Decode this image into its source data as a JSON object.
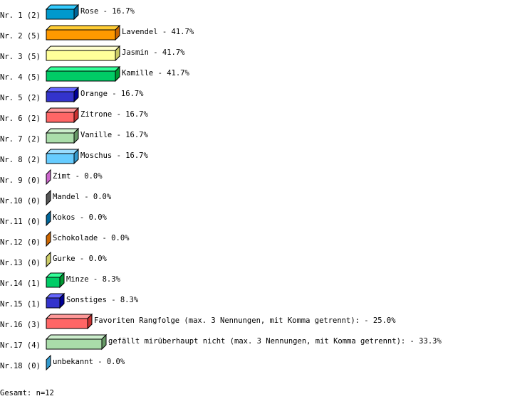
{
  "chart_data": {
    "type": "bar",
    "orientation": "horizontal",
    "style": "3d",
    "unit": "%",
    "xlim": [
      0,
      100
    ],
    "grid": false,
    "rows": [
      {
        "rank": "Nr. 1",
        "count": 2,
        "label": "Rose",
        "value": 16.7,
        "color": "#0099cc",
        "top": "#33ccff",
        "side": "#006699"
      },
      {
        "rank": "Nr. 2",
        "count": 5,
        "label": "Lavendel",
        "value": 41.7,
        "color": "#ff9900",
        "top": "#ffcc33",
        "side": "#cc6600"
      },
      {
        "rank": "Nr. 3",
        "count": 5,
        "label": "Jasmin",
        "value": 41.7,
        "color": "#ffff99",
        "top": "#ffffcc",
        "side": "#cccc66"
      },
      {
        "rank": "Nr. 4",
        "count": 5,
        "label": "Kamille",
        "value": 41.7,
        "color": "#00cc66",
        "top": "#33ff99",
        "side": "#009933"
      },
      {
        "rank": "Nr. 5",
        "count": 2,
        "label": "Orange",
        "value": 16.7,
        "color": "#3333cc",
        "top": "#6666ff",
        "side": "#000099"
      },
      {
        "rank": "Nr. 6",
        "count": 2,
        "label": "Zitrone",
        "value": 16.7,
        "color": "#ff6666",
        "top": "#ff9999",
        "side": "#cc3333"
      },
      {
        "rank": "Nr. 7",
        "count": 2,
        "label": "Vanille",
        "value": 16.7,
        "color": "#aaddaa",
        "top": "#cceecc",
        "side": "#669966"
      },
      {
        "rank": "Nr. 8",
        "count": 2,
        "label": "Moschus",
        "value": 16.7,
        "color": "#66ccff",
        "top": "#99ddff",
        "side": "#3399cc"
      },
      {
        "rank": "Nr. 9",
        "count": 0,
        "label": "Zimt",
        "value": 0.0,
        "color": "#cc66cc",
        "top": "#ee99ee",
        "side": "#cc66cc"
      },
      {
        "rank": "Nr.10",
        "count": 0,
        "label": "Mandel",
        "value": 0.0,
        "color": "#555555",
        "top": "#888888",
        "side": "#555555"
      },
      {
        "rank": "Nr.11",
        "count": 0,
        "label": "Kokos",
        "value": 0.0,
        "color": "#006699",
        "top": "#3399cc",
        "side": "#006699"
      },
      {
        "rank": "Nr.12",
        "count": 0,
        "label": "Schokolade",
        "value": 0.0,
        "color": "#cc6600",
        "top": "#ff9933",
        "side": "#cc6600"
      },
      {
        "rank": "Nr.13",
        "count": 0,
        "label": "Gurke",
        "value": 0.0,
        "color": "#cccc66",
        "top": "#eeee99",
        "side": "#cccc66"
      },
      {
        "rank": "Nr.14",
        "count": 1,
        "label": "Minze",
        "value": 8.3,
        "color": "#00cc66",
        "top": "#33ff99",
        "side": "#009933"
      },
      {
        "rank": "Nr.15",
        "count": 1,
        "label": "Sonstiges",
        "value": 8.3,
        "color": "#3333cc",
        "top": "#6666ff",
        "side": "#000099"
      },
      {
        "rank": "Nr.16",
        "count": 3,
        "label": "Favoriten Rangfolge (max. 3 Nennungen, mit Komma getrennt):",
        "value": 25.0,
        "color": "#ff6666",
        "top": "#ff9999",
        "side": "#cc3333"
      },
      {
        "rank": "Nr.17",
        "count": 4,
        "label": "gefällt mirüberhaupt nicht (max. 3 Nennungen, mit Komma getrennt):",
        "value": 33.3,
        "color": "#aaddaa",
        "top": "#cceecc",
        "side": "#669966"
      },
      {
        "rank": "Nr.18",
        "count": 0,
        "label": "unbekannt",
        "value": 0.0,
        "color": "#3399cc",
        "top": "#66ccff",
        "side": "#3399cc"
      }
    ],
    "total_label": "Gesamt: n=12"
  }
}
